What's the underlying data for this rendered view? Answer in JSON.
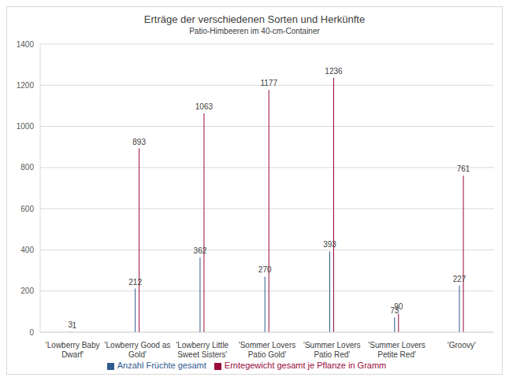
{
  "chart_data": {
    "type": "bar",
    "title": "Erträge der verschiedenen Sorten und Herkünfte",
    "subtitle": "Patio-Himbeeren im 40-cm-Container",
    "categories": [
      "'Lowberry Baby Dwarf'",
      "'Lowberry Good as Gold'",
      "'Lowberry Little Sweet Sisters'",
      "'Sommer Lovers Patio Gold'",
      "'Summer Lovers Patio Red'",
      "'Summer Lovers Petite Red'",
      "'Groovy'"
    ],
    "series": [
      {
        "name": "Anzahl Früchte gesamt",
        "color": "#2f5b8f",
        "values": [
          3,
          212,
          362,
          270,
          393,
          73,
          227
        ]
      },
      {
        "name": "Erntegewicht gesamt je Pflanze in Gramm",
        "color": "#990a3c",
        "values": [
          1,
          893,
          1063,
          1177,
          1236,
          90,
          761
        ]
      }
    ],
    "ylim": [
      0,
      1400
    ],
    "yticks": [
      0,
      200,
      400,
      600,
      800,
      1000,
      1200,
      1400
    ],
    "grid": true,
    "legend": "bottom",
    "data_labels": true
  }
}
